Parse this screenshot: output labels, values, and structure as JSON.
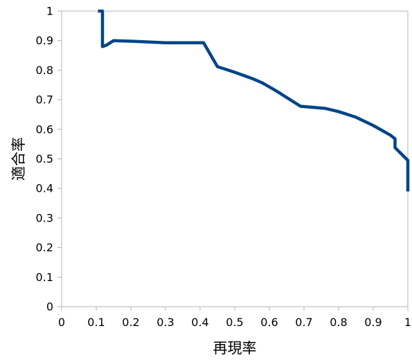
{
  "chart_data": {
    "type": "line",
    "title": "",
    "xlabel": "再現率",
    "ylabel": "適合率",
    "xlim": [
      0,
      1
    ],
    "ylim": [
      0,
      1
    ],
    "x_ticks": [
      "0",
      "0.1",
      "0.2",
      "0.3",
      "0.4",
      "0.5",
      "0.6",
      "0.7",
      "0.8",
      "0.9",
      "1"
    ],
    "y_ticks": [
      "0",
      "0.1",
      "0.2",
      "0.3",
      "0.4",
      "0.5",
      "0.6",
      "0.7",
      "0.8",
      "0.9",
      "1"
    ],
    "grid": false,
    "legend": "none",
    "line_color": "#004586",
    "series": [
      {
        "points": [
          [
            0.105,
            1.0
          ],
          [
            0.118,
            1.0
          ],
          [
            0.118,
            0.88
          ],
          [
            0.13,
            0.885
          ],
          [
            0.15,
            0.9
          ],
          [
            0.2,
            0.898
          ],
          [
            0.3,
            0.893
          ],
          [
            0.35,
            0.893
          ],
          [
            0.41,
            0.893
          ],
          [
            0.45,
            0.812
          ],
          [
            0.5,
            0.793
          ],
          [
            0.55,
            0.772
          ],
          [
            0.58,
            0.757
          ],
          [
            0.62,
            0.73
          ],
          [
            0.69,
            0.678
          ],
          [
            0.76,
            0.671
          ],
          [
            0.8,
            0.66
          ],
          [
            0.85,
            0.641
          ],
          [
            0.9,
            0.613
          ],
          [
            0.95,
            0.58
          ],
          [
            0.963,
            0.568
          ],
          [
            0.963,
            0.538
          ],
          [
            1.0,
            0.495
          ],
          [
            1.0,
            0.39
          ]
        ]
      }
    ]
  }
}
